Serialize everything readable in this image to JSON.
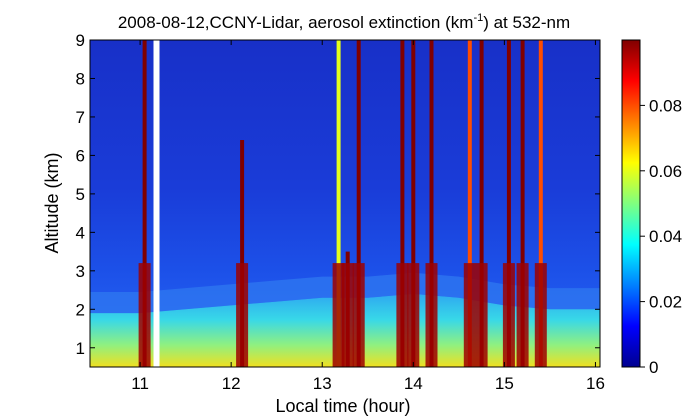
{
  "chart_data": {
    "type": "heatmap",
    "title": "2008-08-12,CCNY-Lidar, aerosol extinction (km",
    "title_sup": "-1",
    "title_tail": ") at 532-nm",
    "xlabel": "Local time (hour)",
    "ylabel": "Altitude (km)",
    "xlim": [
      10.45,
      16.05
    ],
    "ylim": [
      0.5,
      9
    ],
    "xticks": [
      "11",
      "12",
      "13",
      "14",
      "15",
      "16"
    ],
    "yticks": [
      "1",
      "2",
      "3",
      "4",
      "5",
      "6",
      "7",
      "8",
      "9"
    ],
    "colorbar": {
      "clim": [
        0,
        0.1
      ],
      "ticks": [
        "0",
        "0.02",
        "0.04",
        "0.06",
        "0.08"
      ],
      "colormap": "jet"
    },
    "data_gap_hour": 11.18,
    "boundary_layer_top_km": [
      {
        "x": 10.45,
        "y": 1.9
      },
      {
        "x": 11.0,
        "y": 1.9
      },
      {
        "x": 11.5,
        "y": 2.0
      },
      {
        "x": 12.0,
        "y": 2.1
      },
      {
        "x": 12.5,
        "y": 2.2
      },
      {
        "x": 13.0,
        "y": 2.3
      },
      {
        "x": 13.5,
        "y": 2.3
      },
      {
        "x": 14.0,
        "y": 2.4
      },
      {
        "x": 14.5,
        "y": 2.3
      },
      {
        "x": 15.0,
        "y": 2.1
      },
      {
        "x": 15.5,
        "y": 2.0
      },
      {
        "x": 16.05,
        "y": 2.0
      }
    ],
    "cloud_columns": [
      {
        "x": 11.05,
        "top_km": 9.0,
        "value": 0.1
      },
      {
        "x": 12.12,
        "top_km": 6.4,
        "value": 0.1
      },
      {
        "x": 13.18,
        "top_km": 9.0,
        "value": 0.06
      },
      {
        "x": 13.28,
        "top_km": 3.5,
        "value": 0.1
      },
      {
        "x": 13.4,
        "top_km": 9.0,
        "value": 0.1
      },
      {
        "x": 13.88,
        "top_km": 9.0,
        "value": 0.1
      },
      {
        "x": 14.0,
        "top_km": 9.0,
        "value": 0.1
      },
      {
        "x": 14.2,
        "top_km": 9.0,
        "value": 0.1
      },
      {
        "x": 14.62,
        "top_km": 9.0,
        "value": 0.08
      },
      {
        "x": 14.75,
        "top_km": 9.0,
        "value": 0.1
      },
      {
        "x": 15.05,
        "top_km": 9.0,
        "value": 0.1
      },
      {
        "x": 15.2,
        "top_km": 9.0,
        "value": 0.1
      },
      {
        "x": 15.4,
        "top_km": 9.0,
        "value": 0.08
      }
    ]
  }
}
